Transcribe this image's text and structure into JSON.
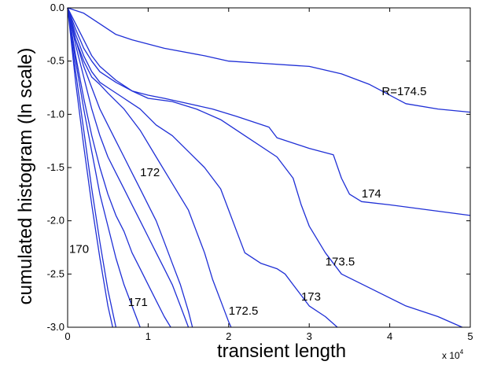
{
  "chart_data": {
    "type": "line",
    "xlabel": "transient length",
    "ylabel": "cumulated histogram  (ln scale)",
    "x_multiplier": "x 10",
    "x_multiplier_exponent": "4",
    "xlim": [
      0,
      50000
    ],
    "ylim": [
      -3.0,
      0.0
    ],
    "xticks": [
      0,
      10000,
      20000,
      30000,
      40000,
      50000
    ],
    "xtick_labels": [
      "0",
      "1",
      "2",
      "3",
      "4",
      "5"
    ],
    "yticks": [
      0.0,
      -0.5,
      -1.0,
      -1.5,
      -2.0,
      -2.5,
      -3.0
    ],
    "ytick_labels": [
      "0.0",
      "-0.5",
      "-1.0",
      "-1.5",
      "-2.0",
      "-2.5",
      "-3.0"
    ],
    "grid": false,
    "line_color": "#1f2fd6",
    "series": [
      {
        "name": "R=174.5",
        "x": [
          0,
          2000,
          4000,
          6000,
          8000,
          12000,
          17000,
          20000,
          24000,
          30000,
          34000,
          37500,
          39000,
          42000,
          46000,
          50000
        ],
        "y": [
          0,
          -0.05,
          -0.15,
          -0.25,
          -0.3,
          -0.38,
          -0.45,
          -0.5,
          -0.52,
          -0.55,
          -0.62,
          -0.72,
          -0.78,
          -0.9,
          -0.95,
          -0.98
        ]
      },
      {
        "name": "R=174",
        "x": [
          0,
          1000,
          2000,
          3000,
          4000,
          6000,
          8000,
          10000,
          12000,
          15000,
          18000,
          21000,
          25000,
          26000,
          30000,
          33000,
          34000,
          35000,
          36500,
          40000,
          45000,
          50000
        ],
        "y": [
          0,
          -0.15,
          -0.3,
          -0.45,
          -0.55,
          -0.68,
          -0.78,
          -0.82,
          -0.85,
          -0.9,
          -0.95,
          -1.02,
          -1.12,
          -1.22,
          -1.32,
          -1.38,
          -1.6,
          -1.75,
          -1.82,
          -1.85,
          -1.9,
          -1.95
        ]
      },
      {
        "name": "R=173.5",
        "x": [
          0,
          1000,
          2000,
          3000,
          4000,
          6000,
          8000,
          10000,
          13000,
          16000,
          19000,
          22000,
          26000,
          28000,
          29000,
          30000,
          32000,
          34000,
          38000,
          42000,
          46000,
          49000
        ],
        "y": [
          0,
          -0.2,
          -0.38,
          -0.5,
          -0.6,
          -0.7,
          -0.78,
          -0.85,
          -0.88,
          -0.95,
          -1.05,
          -1.2,
          -1.4,
          -1.6,
          -1.85,
          -2.05,
          -2.3,
          -2.5,
          -2.65,
          -2.8,
          -2.9,
          -3.0
        ]
      },
      {
        "name": "R=173",
        "x": [
          0,
          1000,
          2000,
          3000,
          4000,
          5000,
          7000,
          9000,
          11000,
          13000,
          15000,
          17000,
          19000,
          20000,
          21000,
          22000,
          24000,
          26000,
          27000,
          28000,
          29000,
          30000,
          32000,
          33500
        ],
        "y": [
          0,
          -0.25,
          -0.45,
          -0.6,
          -0.7,
          -0.75,
          -0.85,
          -0.95,
          -1.1,
          -1.2,
          -1.35,
          -1.5,
          -1.7,
          -1.9,
          -2.1,
          -2.3,
          -2.4,
          -2.45,
          -2.5,
          -2.6,
          -2.7,
          -2.8,
          -2.9,
          -3.0
        ]
      },
      {
        "name": "R=172.5",
        "x": [
          0,
          1000,
          2000,
          3000,
          4000,
          5000,
          7000,
          9000,
          11000,
          13000,
          15000,
          16000,
          17000,
          18000,
          19000,
          20000,
          20300
        ],
        "y": [
          0,
          -0.3,
          -0.5,
          -0.65,
          -0.72,
          -0.8,
          -0.95,
          -1.15,
          -1.4,
          -1.65,
          -1.9,
          -2.1,
          -2.3,
          -2.55,
          -2.75,
          -2.95,
          -3.0
        ]
      },
      {
        "name": "R=172",
        "x": [
          0,
          1000,
          2000,
          3000,
          4000,
          5000,
          6000,
          7000,
          8000,
          9000,
          10000,
          11000,
          12000,
          13000,
          14000,
          15000,
          15500
        ],
        "y": [
          0,
          -0.3,
          -0.55,
          -0.75,
          -0.95,
          -1.1,
          -1.25,
          -1.4,
          -1.55,
          -1.7,
          -1.85,
          -2.0,
          -2.2,
          -2.4,
          -2.6,
          -2.85,
          -3.0
        ]
      },
      {
        "name": "",
        "x": [
          0,
          1000,
          2000,
          3000,
          4000,
          5000,
          6000,
          7000,
          8000,
          9000,
          10000,
          11000,
          12000,
          13000,
          14000,
          15000
        ],
        "y": [
          0,
          -0.35,
          -0.65,
          -0.95,
          -1.2,
          -1.4,
          -1.55,
          -1.7,
          -1.85,
          -2.0,
          -2.15,
          -2.3,
          -2.45,
          -2.6,
          -2.8,
          -3.0
        ]
      },
      {
        "name": "",
        "x": [
          0,
          1000,
          2000,
          3000,
          4000,
          5000,
          6000,
          7000,
          8000,
          9000,
          10000,
          11000,
          12000,
          12800
        ],
        "y": [
          0,
          -0.45,
          -0.85,
          -1.2,
          -1.5,
          -1.75,
          -1.95,
          -2.1,
          -2.3,
          -2.45,
          -2.6,
          -2.75,
          -2.9,
          -3.0
        ]
      },
      {
        "name": "R=171",
        "x": [
          0,
          1000,
          2000,
          3000,
          4000,
          5000,
          6000,
          7000,
          8000,
          9000
        ],
        "y": [
          0,
          -0.5,
          -0.95,
          -1.35,
          -1.75,
          -2.05,
          -2.35,
          -2.6,
          -2.8,
          -3.0
        ]
      },
      {
        "name": "",
        "x": [
          0,
          1000,
          2000,
          3000,
          4000,
          5000,
          6000
        ],
        "y": [
          0,
          -0.6,
          -1.15,
          -1.7,
          -2.2,
          -2.65,
          -3.0
        ]
      },
      {
        "name": "R=170",
        "x": [
          0,
          1000,
          2000,
          3000,
          4000,
          5000,
          5600
        ],
        "y": [
          0,
          -0.7,
          -1.3,
          -1.85,
          -2.35,
          -2.8,
          -3.0
        ]
      }
    ],
    "annotations": [
      {
        "text": "R=174.5",
        "x": 39000,
        "y": -0.82
      },
      {
        "text": "174",
        "x": 36500,
        "y": -1.78
      },
      {
        "text": "173.5",
        "x": 32000,
        "y": -2.42
      },
      {
        "text": "173",
        "x": 29000,
        "y": -2.75
      },
      {
        "text": "172.5",
        "x": 20000,
        "y": -2.88
      },
      {
        "text": "172",
        "x": 9000,
        "y": -1.58
      },
      {
        "text": "171",
        "x": 7500,
        "y": -2.8
      },
      {
        "text": "170",
        "x": 200,
        "y": -2.3
      }
    ]
  }
}
